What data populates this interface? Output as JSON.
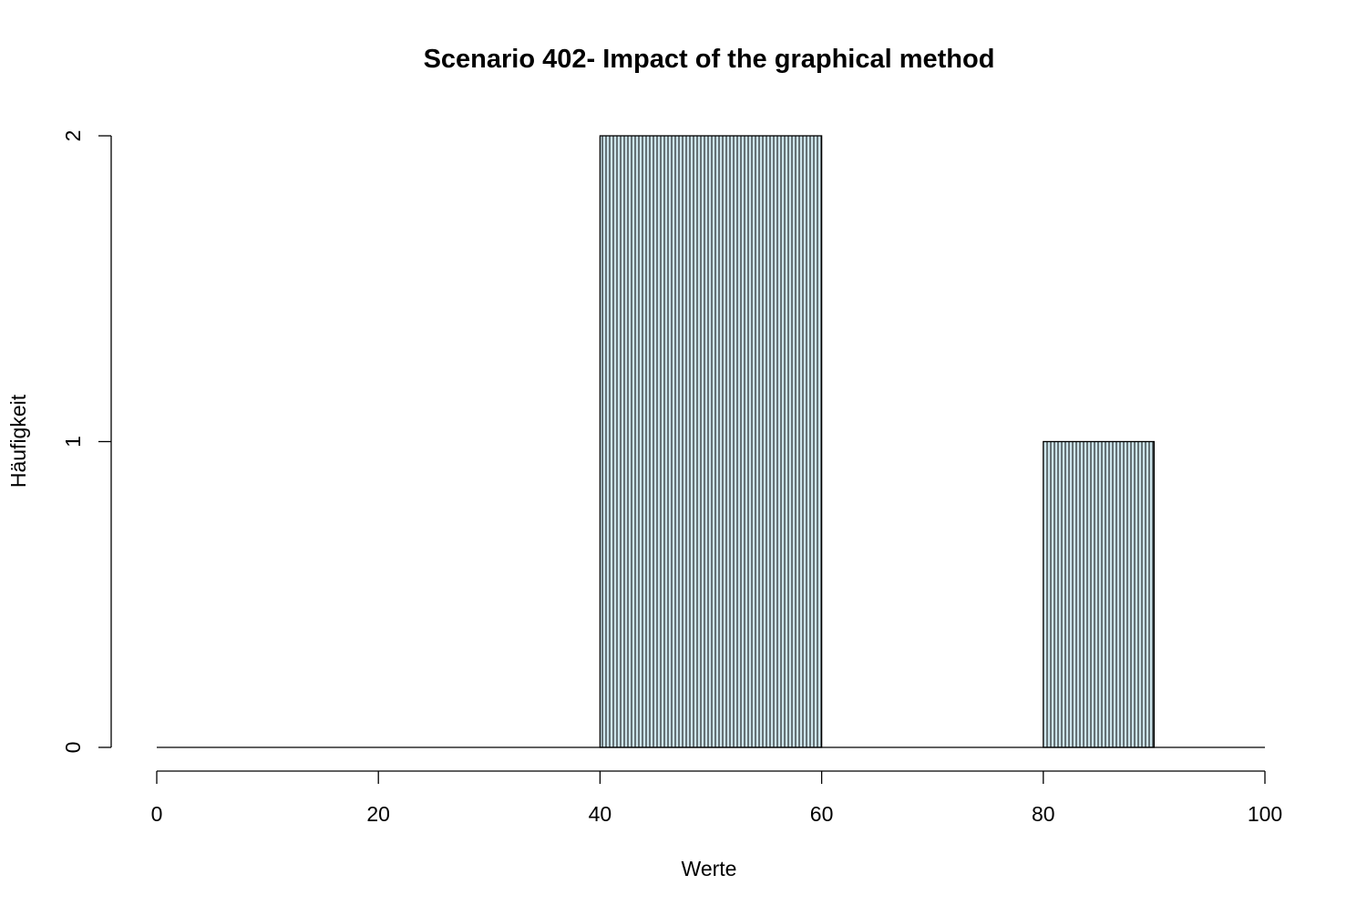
{
  "chart_data": {
    "type": "bar",
    "title": "Scenario 402- Impact of the graphical method",
    "xlabel": "Werte",
    "ylabel": "Häufigkeit",
    "xlim": [
      0,
      100
    ],
    "ylim": [
      0,
      2
    ],
    "x_ticks": [
      "0",
      "20",
      "40",
      "60",
      "80",
      "100"
    ],
    "y_ticks": [
      "0",
      "1",
      "2"
    ],
    "bars": [
      {
        "x_start": 40,
        "x_end": 60,
        "value": 2
      },
      {
        "x_start": 80,
        "x_end": 90,
        "value": 1
      }
    ],
    "bar_fill": "#cde5ec",
    "bar_hatch": "#000000",
    "baseline": true,
    "grid": false,
    "legend": "none"
  }
}
